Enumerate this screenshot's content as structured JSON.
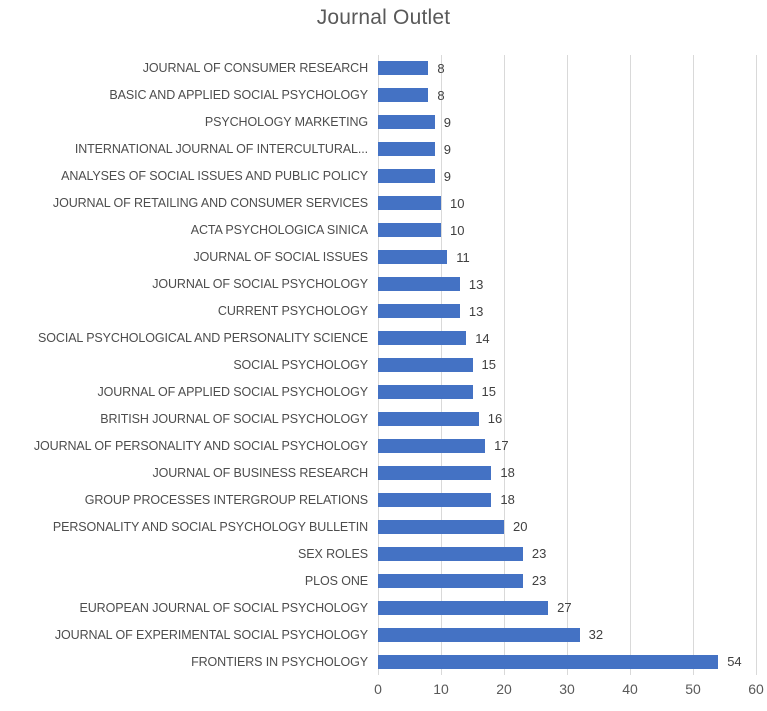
{
  "chart_data": {
    "type": "bar",
    "orientation": "horizontal",
    "title": "Journal Outlet",
    "categories": [
      "JOURNAL OF CONSUMER RESEARCH",
      "BASIC AND APPLIED SOCIAL PSYCHOLOGY",
      "PSYCHOLOGY MARKETING",
      "INTERNATIONAL JOURNAL OF INTERCULTURAL...",
      "ANALYSES OF SOCIAL ISSUES AND PUBLIC POLICY",
      "JOURNAL OF RETAILING AND CONSUMER SERVICES",
      "ACTA PSYCHOLOGICA SINICA",
      "JOURNAL OF SOCIAL ISSUES",
      "JOURNAL OF SOCIAL PSYCHOLOGY",
      "CURRENT PSYCHOLOGY",
      "SOCIAL PSYCHOLOGICAL AND PERSONALITY SCIENCE",
      "SOCIAL PSYCHOLOGY",
      "JOURNAL OF APPLIED SOCIAL PSYCHOLOGY",
      "BRITISH JOURNAL OF SOCIAL PSYCHOLOGY",
      "JOURNAL OF PERSONALITY AND SOCIAL PSYCHOLOGY",
      "JOURNAL OF BUSINESS RESEARCH",
      "GROUP PROCESSES INTERGROUP RELATIONS",
      "PERSONALITY AND SOCIAL PSYCHOLOGY BULLETIN",
      "SEX ROLES",
      "PLOS ONE",
      "EUROPEAN JOURNAL OF SOCIAL PSYCHOLOGY",
      "JOURNAL OF EXPERIMENTAL SOCIAL PSYCHOLOGY",
      "FRONTIERS IN PSYCHOLOGY"
    ],
    "values": [
      8,
      8,
      9,
      9,
      9,
      10,
      10,
      11,
      13,
      13,
      14,
      15,
      15,
      16,
      17,
      18,
      18,
      20,
      23,
      23,
      27,
      32,
      54
    ],
    "x_ticks": [
      0,
      10,
      20,
      30,
      40,
      50,
      60
    ],
    "xlim": [
      0,
      60
    ],
    "xlabel": "",
    "ylabel": "",
    "grid": true,
    "legend": "none",
    "colors": {
      "bar": "#4472C4",
      "gridline": "#d9d9d9",
      "title_text": "#595959",
      "category_text": "#4d4d4d",
      "value_text": "#404040",
      "tick_text": "#595959"
    }
  }
}
